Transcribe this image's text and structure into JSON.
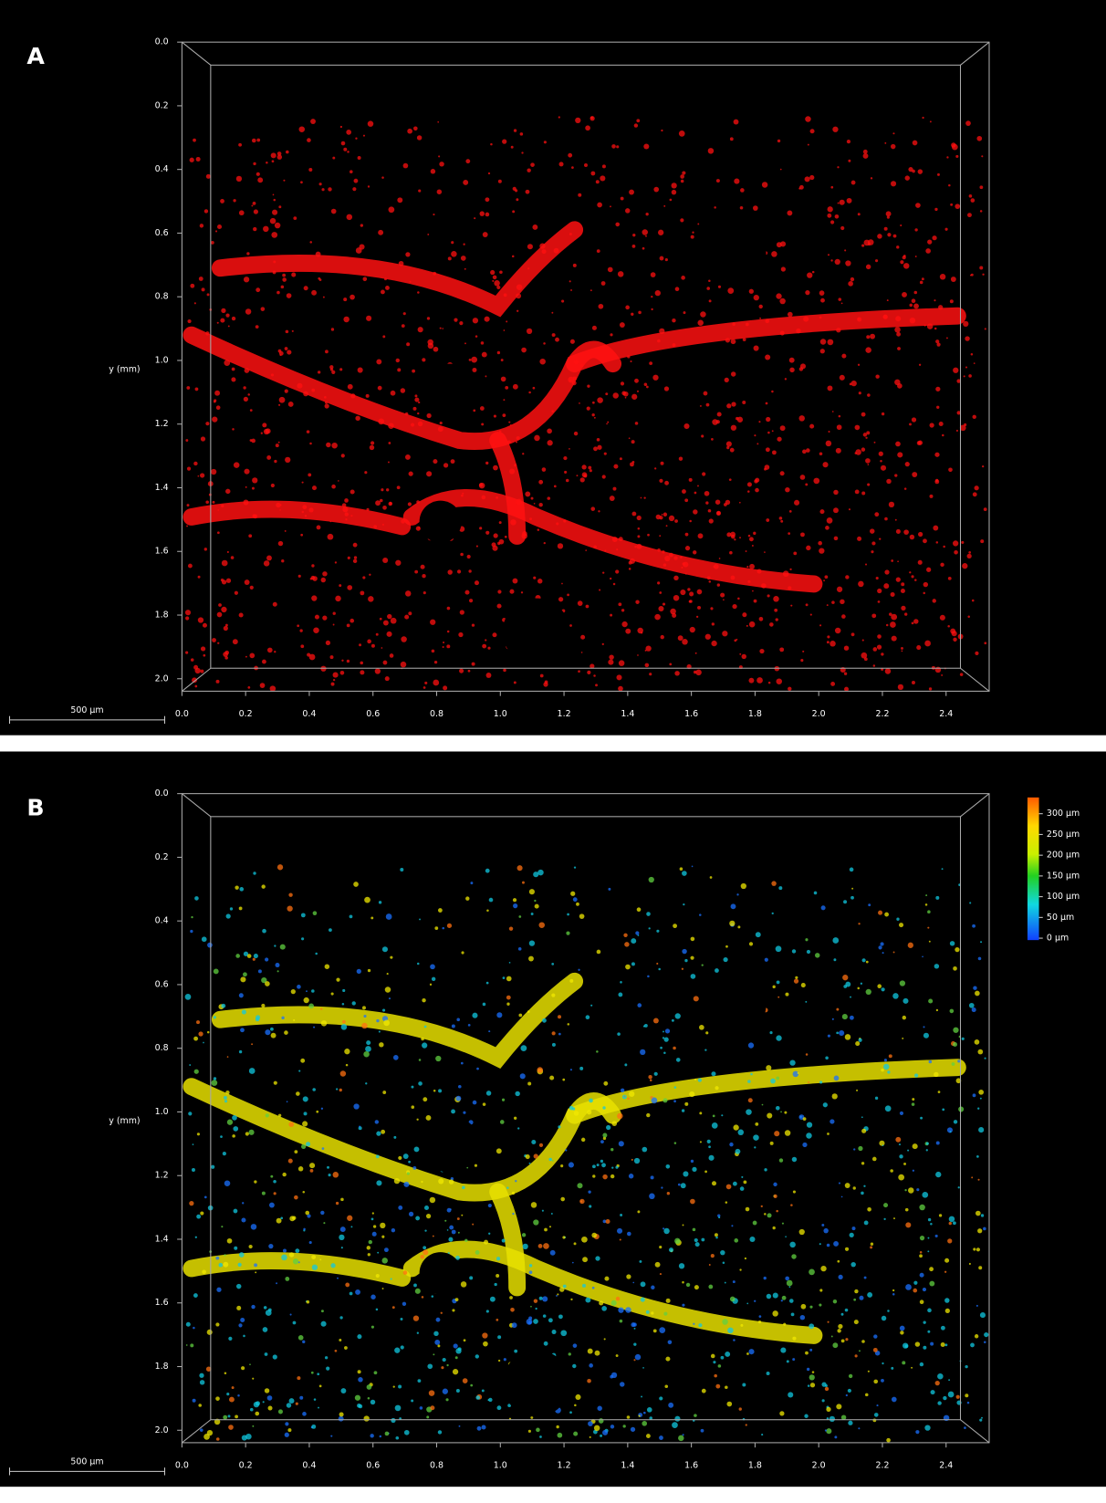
{
  "panels": [
    {
      "label": "A",
      "y_axis_label": "y (mm)",
      "scale_bar": "500 µm",
      "x_ticks": [
        {
          "value": 0,
          "label": "0.0"
        },
        {
          "value": 0.2,
          "label": "0.2"
        },
        {
          "value": 0.4,
          "label": "0.4"
        },
        {
          "value": 0.6,
          "label": "0.6"
        },
        {
          "value": 0.8,
          "label": "0.8"
        },
        {
          "value": 1,
          "label": "1.0"
        },
        {
          "value": 1.2,
          "label": "1.2"
        },
        {
          "value": 1.4,
          "label": "1.4"
        },
        {
          "value": 1.6,
          "label": "1.6"
        },
        {
          "value": 1.8,
          "label": "1.8"
        },
        {
          "value": 2,
          "label": "2.0"
        },
        {
          "value": 2.2,
          "label": "2.2"
        },
        {
          "value": 2.4,
          "label": "2.4"
        }
      ],
      "y_ticks": [
        {
          "value": 0,
          "label": "0.0"
        },
        {
          "value": 0.2,
          "label": "0.2"
        },
        {
          "value": 0.4,
          "label": "0.4"
        },
        {
          "value": 0.6,
          "label": "0.6"
        },
        {
          "value": 0.8,
          "label": "0.8"
        },
        {
          "value": 1,
          "label": "1.0"
        },
        {
          "value": 1.2,
          "label": "1.2"
        },
        {
          "value": 1.4,
          "label": "1.4"
        },
        {
          "value": 1.6,
          "label": "1.6"
        },
        {
          "value": 1.8,
          "label": "1.8"
        },
        {
          "value": 2,
          "label": "2.0"
        }
      ]
    },
    {
      "label": "B",
      "y_axis_label": "y (mm)",
      "scale_bar": "500 µm",
      "x_ticks": [
        {
          "value": 0,
          "label": "0.0"
        },
        {
          "value": 0.2,
          "label": "0.2"
        },
        {
          "value": 0.4,
          "label": "0.4"
        },
        {
          "value": 0.6,
          "label": "0.6"
        },
        {
          "value": 0.8,
          "label": "0.8"
        },
        {
          "value": 1,
          "label": "1.0"
        },
        {
          "value": 1.2,
          "label": "1.2"
        },
        {
          "value": 1.4,
          "label": "1.4"
        },
        {
          "value": 1.6,
          "label": "1.6"
        },
        {
          "value": 1.8,
          "label": "1.8"
        },
        {
          "value": 2,
          "label": "2.0"
        },
        {
          "value": 2.2,
          "label": "2.2"
        },
        {
          "value": 2.4,
          "label": "2.4"
        }
      ],
      "y_ticks": [
        {
          "value": 0,
          "label": "0.0"
        },
        {
          "value": 0.2,
          "label": "0.2"
        },
        {
          "value": 0.4,
          "label": "0.4"
        },
        {
          "value": 0.6,
          "label": "0.6"
        },
        {
          "value": 0.8,
          "label": "0.8"
        },
        {
          "value": 1,
          "label": "1.0"
        },
        {
          "value": 1.2,
          "label": "1.2"
        },
        {
          "value": 1.4,
          "label": "1.4"
        },
        {
          "value": 1.6,
          "label": "1.6"
        },
        {
          "value": 1.8,
          "label": "1.8"
        },
        {
          "value": 2,
          "label": "2.0"
        }
      ],
      "colorbar": {
        "ticks": [
          {
            "value": 300,
            "label": "300 µm"
          },
          {
            "value": 250,
            "label": "250 µm"
          },
          {
            "value": 200,
            "label": "200 µm"
          },
          {
            "value": 150,
            "label": "150 µm"
          },
          {
            "value": 100,
            "label": "100 µm"
          },
          {
            "value": 50,
            "label": "50 µm"
          },
          {
            "value": 0,
            "label": "0 µm"
          }
        ]
      }
    }
  ]
}
